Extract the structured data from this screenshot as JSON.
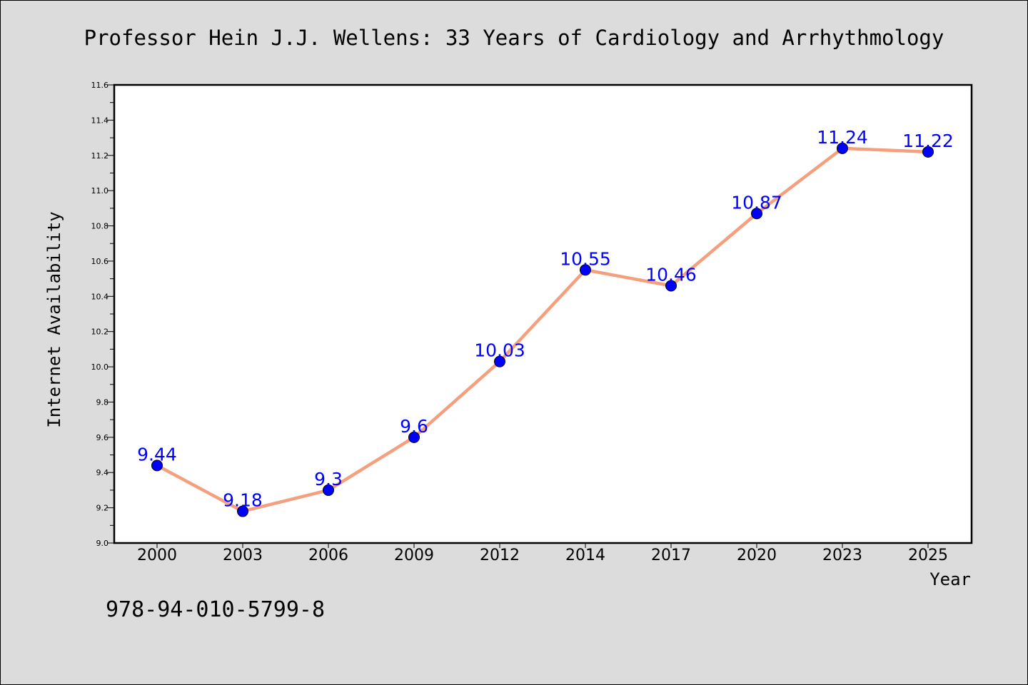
{
  "chart_data": {
    "type": "line",
    "title": "Professor Hein J.J. Wellens: 33 Years of Cardiology and Arrhythmology",
    "xlabel": "Year",
    "ylabel": "Internet Availability",
    "categories": [
      "2000",
      "2003",
      "2006",
      "2009",
      "2012",
      "2014",
      "2017",
      "2020",
      "2023",
      "2025"
    ],
    "series": [
      {
        "values": [
          9.44,
          9.18,
          9.3,
          9.6,
          10.03,
          10.55,
          10.46,
          10.87,
          11.24,
          11.22
        ],
        "data_labels": [
          "9.44",
          "9.18",
          "9.3",
          "9.6",
          "10.03",
          "10.55",
          "10.46",
          "10.87",
          "11.24",
          "11.22"
        ]
      }
    ],
    "ylim": [
      9.0,
      11.6
    ],
    "yticks": [
      "9.0",
      "9.2",
      "9.4",
      "9.6",
      "9.8",
      "10.0",
      "10.2",
      "10.4",
      "10.6",
      "10.8",
      "11.0",
      "11.2",
      "11.4",
      "11.6"
    ],
    "grid": false,
    "colors": {
      "line": "#f4a07f",
      "marker": "#0000ff",
      "data_label": "#0000ff",
      "plot_background": "#ffffff",
      "figure_background": "#dcdcdc"
    }
  },
  "footer": {
    "isbn": "978-94-010-5799-8"
  }
}
